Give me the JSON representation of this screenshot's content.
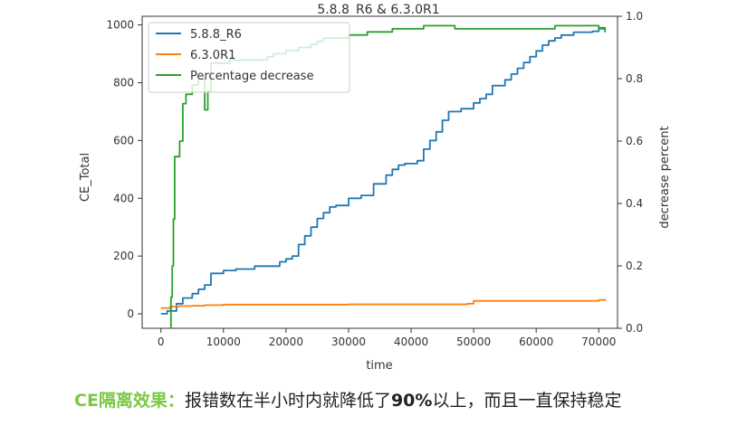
{
  "chart_data": {
    "type": "line",
    "title": "5.8.8_R6 & 6.3.0R1",
    "xlabel": "time",
    "ylabel_left": "CE_Total",
    "ylabel_right": "decrease percent",
    "xlim": [
      -3000,
      73000
    ],
    "ylim_left": [
      -50,
      1030
    ],
    "ylim_right": [
      0.0,
      1.0
    ],
    "x_ticks": [
      0,
      10000,
      20000,
      30000,
      40000,
      50000,
      60000,
      70000
    ],
    "y_ticks_left": [
      0,
      200,
      400,
      600,
      800,
      1000
    ],
    "y_ticks_right": [
      0.0,
      0.2,
      0.4,
      0.6,
      0.8,
      1.0
    ],
    "grid": false,
    "legend_position": "upper-left",
    "series": [
      {
        "name": "5.8.8_R6",
        "axis": "left",
        "color": "#1f77b4",
        "points": [
          [
            0,
            0
          ],
          [
            1000,
            10
          ],
          [
            2500,
            35
          ],
          [
            3500,
            55
          ],
          [
            5000,
            70
          ],
          [
            6000,
            85
          ],
          [
            7000,
            100
          ],
          [
            8000,
            140
          ],
          [
            10000,
            150
          ],
          [
            12000,
            155
          ],
          [
            15000,
            165
          ],
          [
            19000,
            180
          ],
          [
            20000,
            190
          ],
          [
            21000,
            200
          ],
          [
            22000,
            240
          ],
          [
            23000,
            270
          ],
          [
            24000,
            300
          ],
          [
            25000,
            330
          ],
          [
            26000,
            350
          ],
          [
            27000,
            370
          ],
          [
            28000,
            375
          ],
          [
            30000,
            400
          ],
          [
            32000,
            410
          ],
          [
            34000,
            450
          ],
          [
            36000,
            480
          ],
          [
            37000,
            500
          ],
          [
            38000,
            515
          ],
          [
            39000,
            520
          ],
          [
            41000,
            530
          ],
          [
            42000,
            570
          ],
          [
            43000,
            600
          ],
          [
            44000,
            630
          ],
          [
            45000,
            670
          ],
          [
            46000,
            700
          ],
          [
            48000,
            710
          ],
          [
            50000,
            730
          ],
          [
            51000,
            745
          ],
          [
            52000,
            760
          ],
          [
            53000,
            790
          ],
          [
            55000,
            810
          ],
          [
            56000,
            830
          ],
          [
            57000,
            850
          ],
          [
            58000,
            870
          ],
          [
            59000,
            890
          ],
          [
            60000,
            910
          ],
          [
            61000,
            930
          ],
          [
            62000,
            945
          ],
          [
            63000,
            955
          ],
          [
            64000,
            965
          ],
          [
            66000,
            975
          ],
          [
            69000,
            978
          ],
          [
            70000,
            990
          ],
          [
            71000,
            975
          ]
        ]
      },
      {
        "name": "6.3.0R1",
        "axis": "left",
        "color": "#ff7f0e",
        "points": [
          [
            0,
            20
          ],
          [
            1500,
            25
          ],
          [
            3000,
            27
          ],
          [
            5000,
            28
          ],
          [
            7000,
            30
          ],
          [
            10000,
            32
          ],
          [
            30000,
            33
          ],
          [
            49000,
            35
          ],
          [
            50000,
            45
          ],
          [
            70000,
            48
          ],
          [
            71000,
            52
          ]
        ]
      },
      {
        "name": "Percentage decrease",
        "axis": "right",
        "color": "#2ca02c",
        "points": [
          [
            1500,
            0
          ],
          [
            1600,
            0.1
          ],
          [
            1800,
            0.2
          ],
          [
            2000,
            0.35
          ],
          [
            2200,
            0.55
          ],
          [
            3000,
            0.6
          ],
          [
            3500,
            0.72
          ],
          [
            4000,
            0.75
          ],
          [
            5000,
            0.78
          ],
          [
            6000,
            0.8
          ],
          [
            6500,
            0.8
          ],
          [
            7000,
            0.7
          ],
          [
            7500,
            0.76
          ],
          [
            8000,
            0.85
          ],
          [
            9000,
            0.85
          ],
          [
            11000,
            0.86
          ],
          [
            13000,
            0.86
          ],
          [
            15000,
            0.86
          ],
          [
            17000,
            0.87
          ],
          [
            18000,
            0.88
          ],
          [
            19000,
            0.88
          ],
          [
            20000,
            0.89
          ],
          [
            21000,
            0.89
          ],
          [
            22000,
            0.9
          ],
          [
            24000,
            0.91
          ],
          [
            25000,
            0.92
          ],
          [
            26000,
            0.93
          ],
          [
            27000,
            0.93
          ],
          [
            30000,
            0.94
          ],
          [
            33000,
            0.95
          ],
          [
            35000,
            0.95
          ],
          [
            37000,
            0.96
          ],
          [
            40000,
            0.96
          ],
          [
            42000,
            0.97
          ],
          [
            46000,
            0.97
          ],
          [
            47000,
            0.96
          ],
          [
            50000,
            0.96
          ],
          [
            60000,
            0.96
          ],
          [
            63000,
            0.97
          ],
          [
            69000,
            0.97
          ],
          [
            70000,
            0.96
          ],
          [
            71000,
            0.95
          ]
        ]
      }
    ]
  },
  "caption": {
    "lead": "CE隔离效果：",
    "text1": "报错数在半小时内就降低了",
    "bold": "90%",
    "text2": "以上，而且一直保持稳定"
  }
}
